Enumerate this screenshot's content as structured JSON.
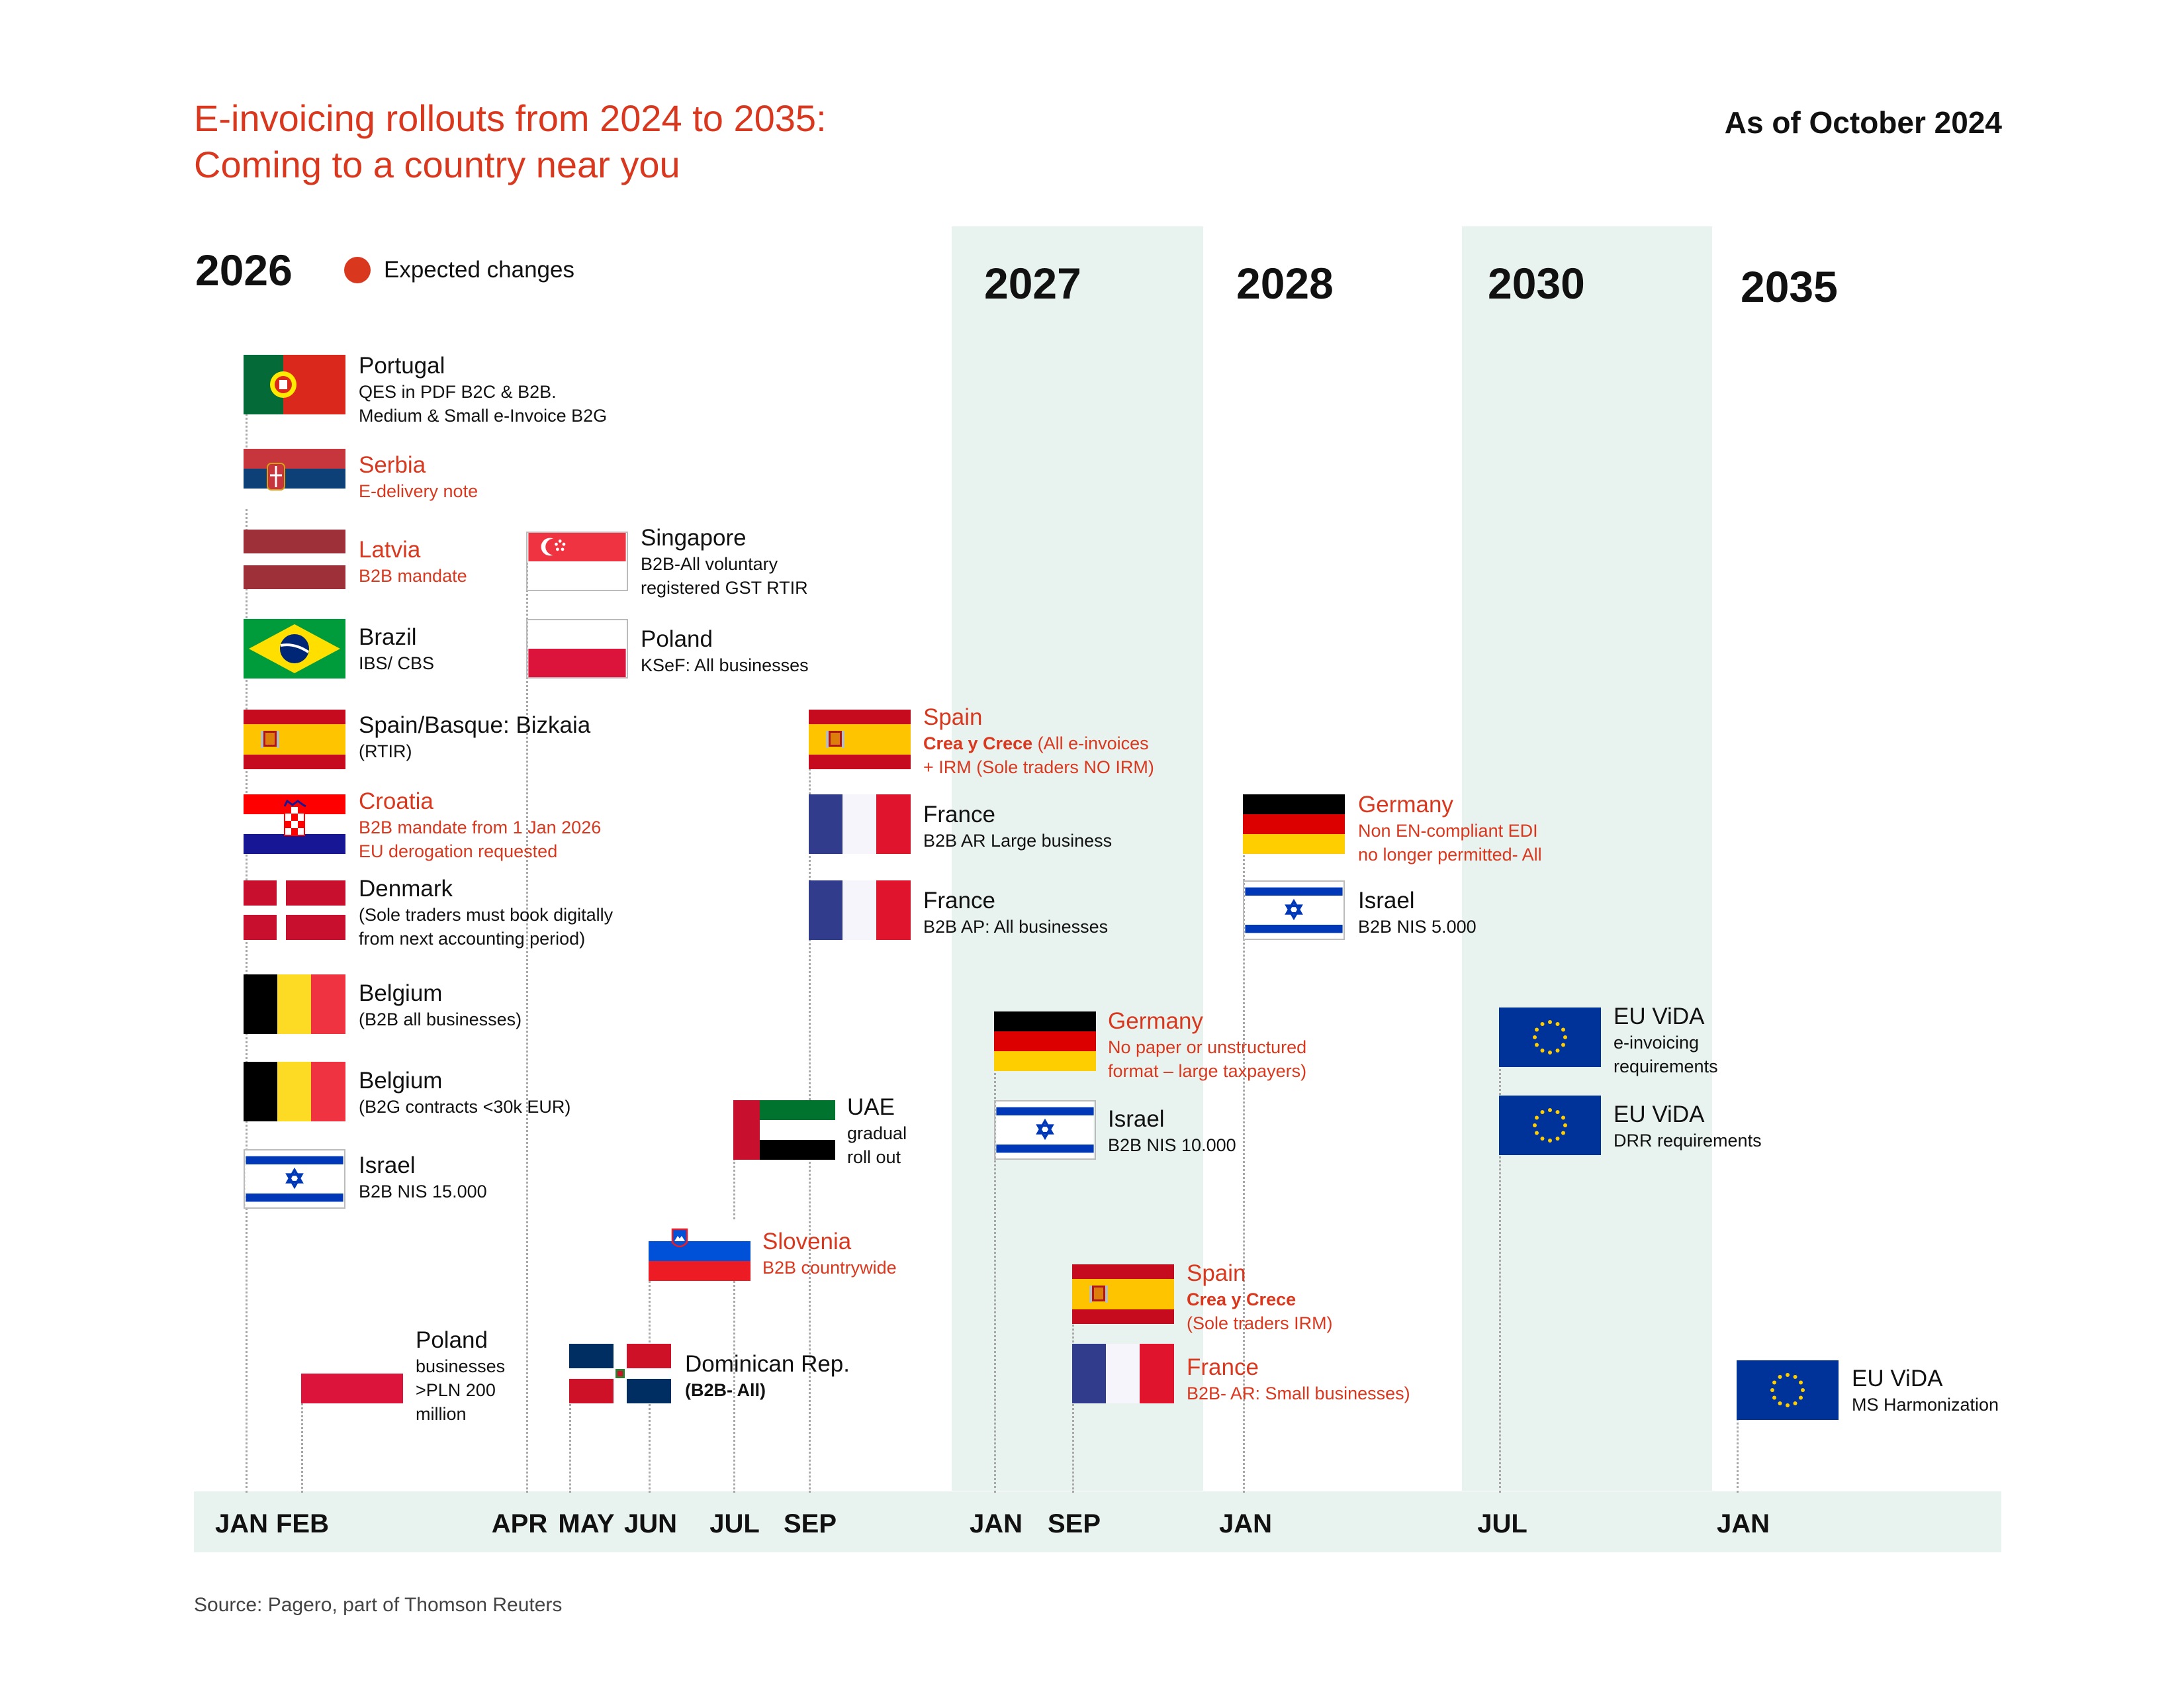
{
  "header": {
    "title_line1": "E-invoicing rollouts from 2024 to 2035:",
    "title_line2": "Coming to a country near you",
    "as_of": "As of October 2024"
  },
  "legend": {
    "label": "Expected changes",
    "color": "#d9381e"
  },
  "years": [
    "2026",
    "2027",
    "2028",
    "2030",
    "2035"
  ],
  "months": [
    "JAN",
    "FEB",
    "APR",
    "MAY",
    "JUN",
    "JUL",
    "SEP",
    "JAN",
    "SEP",
    "JAN",
    "JUL",
    "JAN"
  ],
  "colors": {
    "accent": "#d9381e",
    "band": "#e8f2ef",
    "text": "#111111"
  },
  "entries": {
    "portugal": {
      "name": "Portugal",
      "desc1": "QES in PDF B2C & B2B.",
      "desc2": "Medium & Small e-Invoice B2G",
      "flag": "portugal-flag-icon"
    },
    "serbia": {
      "name": "Serbia",
      "desc1": "E-delivery note",
      "flag": "serbia-flag-icon",
      "expected": true
    },
    "latvia": {
      "name": "Latvia",
      "desc1": "B2B mandate",
      "flag": "latvia-flag-icon",
      "expected": true
    },
    "brazil": {
      "name": "Brazil",
      "desc1": "IBS/ CBS",
      "flag": "brazil-flag-icon"
    },
    "spain_basque": {
      "name": "Spain/Basque: Bizkaia",
      "desc1": "(RTIR)",
      "flag": "spain-flag-icon"
    },
    "croatia": {
      "name": "Croatia",
      "desc1": "B2B mandate from 1 Jan 2026",
      "desc2": "EU derogation requested",
      "flag": "croatia-flag-icon",
      "expected": true
    },
    "denmark": {
      "name": "Denmark",
      "desc1": "(Sole traders must book digitally",
      "desc2": "from next accounting period)",
      "flag": "denmark-flag-icon"
    },
    "belgium_b2b": {
      "name": "Belgium",
      "desc1": "(B2B all businesses)",
      "flag": "belgium-flag-icon"
    },
    "belgium_b2g": {
      "name": "Belgium",
      "desc1": "(B2G contracts <30k EUR)",
      "flag": "belgium-flag-icon"
    },
    "israel_2026": {
      "name": "Israel",
      "desc1": "B2B NIS 15.000",
      "flag": "israel-flag-icon"
    },
    "poland_feb": {
      "name": "Poland",
      "desc1": "businesses",
      "desc2": ">PLN 200",
      "desc3": "million",
      "flag": "poland-flag-icon"
    },
    "singapore": {
      "name": "Singapore",
      "desc1": "B2B-All voluntary",
      "desc2": "registered GST RTIR",
      "flag": "singapore-flag-icon"
    },
    "poland_apr": {
      "name": "Poland",
      "desc1": "KSeF: All businesses",
      "flag": "poland-flag-icon"
    },
    "dominican": {
      "name": "Dominican Rep.",
      "desc1": "(B2B- All)",
      "flag": "dominican-flag-icon"
    },
    "slovenia": {
      "name": "Slovenia",
      "desc1": "B2B countrywide",
      "flag": "slovenia-flag-icon",
      "expected": true
    },
    "uae": {
      "name": "UAE",
      "desc1": "gradual",
      "desc2": "roll out",
      "flag": "uae-flag-icon"
    },
    "spain_sep": {
      "name": "Spain",
      "desc_bold": "Crea y Crece",
      "desc1": " (All e-invoices",
      "desc2": "+ IRM (Sole traders NO IRM)",
      "flag": "spain-flag-icon",
      "expected": true
    },
    "france_ar": {
      "name": "France",
      "desc1": "B2B AR Large business",
      "flag": "france-flag-icon"
    },
    "france_ap": {
      "name": "France",
      "desc1": "B2B AP: All businesses",
      "flag": "france-flag-icon"
    },
    "germany_2027": {
      "name": "Germany",
      "desc1": "No paper or unstructured",
      "desc2": "format – large taxpayers)",
      "flag": "germany-flag-icon",
      "expected": true
    },
    "israel_2027": {
      "name": "Israel",
      "desc1": "B2B NIS 10.000",
      "flag": "israel-flag-icon"
    },
    "spain_2027": {
      "name": "Spain",
      "desc_bold": "Crea y Crece",
      "desc1": "(Sole traders IRM)",
      "flag": "spain-flag-icon",
      "expected": true
    },
    "france_2027": {
      "name": "France",
      "desc1": "B2B- AR: Small businesses)",
      "flag": "france-flag-icon",
      "expected": true
    },
    "germany_2028": {
      "name": "Germany",
      "desc1": "Non EN-compliant EDI",
      "desc2": "no longer permitted- All",
      "flag": "germany-flag-icon",
      "expected": true
    },
    "israel_2028": {
      "name": "Israel",
      "desc1": "B2B NIS 5.000",
      "flag": "israel-flag-icon"
    },
    "eu_vida_einv": {
      "name": "EU ViDA",
      "desc1": "e-invoicing",
      "desc2": "requirements",
      "flag": "eu-flag-icon"
    },
    "eu_vida_drr": {
      "name": "EU ViDA",
      "desc1": "DRR requirements",
      "flag": "eu-flag-icon"
    },
    "eu_vida_ms": {
      "name": "EU ViDA",
      "desc1": "MS Harmonization",
      "flag": "eu-flag-icon"
    }
  },
  "source": "Source: Pagero, part of Thomson Reuters"
}
